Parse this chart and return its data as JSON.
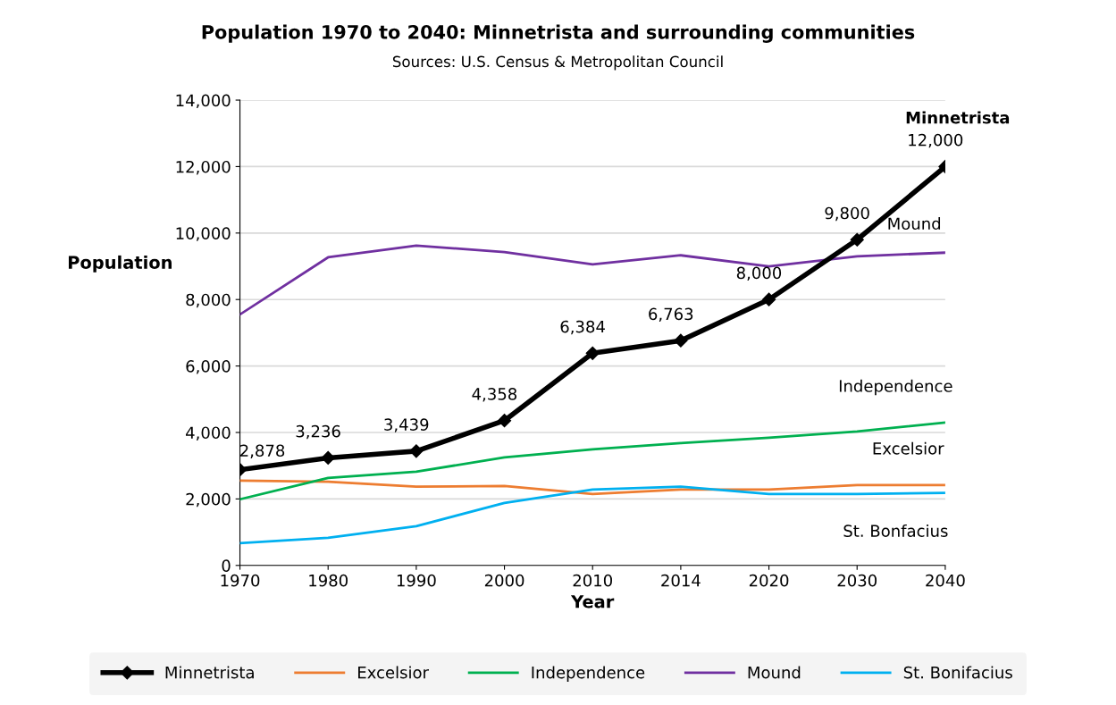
{
  "chart_data": {
    "type": "line",
    "title": "Population 1970 to 2040: Minnetrista and surrounding communities",
    "subtitle": "Sources: U.S. Census & Metropolitan Council",
    "xlabel": "Year",
    "ylabel": "Population",
    "categories": [
      "1970",
      "1980",
      "1990",
      "2000",
      "2010",
      "2014",
      "2020",
      "2030",
      "2040"
    ],
    "series": [
      {
        "name": "Minnetrista",
        "color": "#000000",
        "marker": "diamond",
        "values": [
          2878,
          3236,
          3439,
          4358,
          6384,
          6763,
          8000,
          9800,
          12000
        ],
        "value_labels": [
          "2,878",
          "3,236",
          "3,439",
          "4,358",
          "6,384",
          "6,763",
          "8,000",
          "9,800",
          "12,000"
        ]
      },
      {
        "name": "Excelsior",
        "color": "#ed7d31",
        "values": [
          2550,
          2520,
          2370,
          2390,
          2150,
          2280,
          2280,
          2420,
          2420
        ]
      },
      {
        "name": "Independence",
        "color": "#00b050",
        "values": [
          1990,
          2630,
          2820,
          3250,
          3490,
          3680,
          3840,
          4030,
          4300
        ]
      },
      {
        "name": "Mound",
        "color": "#7030a0",
        "values": [
          7550,
          9270,
          9620,
          9430,
          9060,
          9330,
          9000,
          9300,
          9410
        ]
      },
      {
        "name": "St. Bonifacius",
        "color": "#00b0f0",
        "values": [
          670,
          830,
          1180,
          1880,
          2280,
          2370,
          2150,
          2150,
          2180
        ]
      }
    ],
    "annotations": [
      {
        "text": "Minnetrista",
        "x": "2040",
        "y": 12000
      },
      {
        "text": "Mound",
        "x": "2040",
        "y": 9410
      },
      {
        "text": "Independence",
        "x": "2040",
        "y": 4300
      },
      {
        "text": "Excelsior",
        "x": "2040",
        "y": 2420
      },
      {
        "text": "St. Bonfacius",
        "x": "2040",
        "y": 2180
      }
    ],
    "ylim": [
      0,
      14000
    ],
    "yticks": [
      0,
      {
        "value": 2000,
        "label": "2,000"
      },
      {
        "value": 4000,
        "label": "4,000"
      },
      {
        "value": 6000,
        "label": "6,000"
      },
      {
        "value": 8000,
        "label": "8,000"
      },
      {
        "value": 10000,
        "label": "10,000"
      },
      {
        "value": 12000,
        "label": "12,000"
      },
      {
        "value": 14000,
        "label": "14,000"
      }
    ],
    "grid": "y",
    "legend": "bottom",
    "line_style": "solid"
  }
}
